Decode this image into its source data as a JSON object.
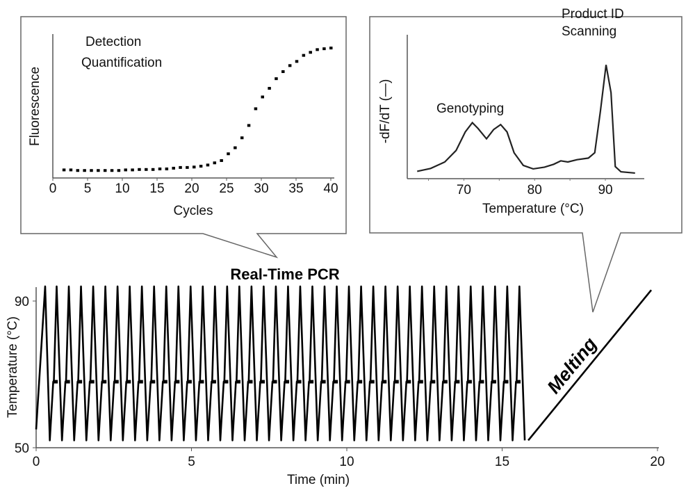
{
  "chart_data": [
    {
      "type": "line",
      "title": "Real-Time PCR",
      "xlabel": "Time (min)",
      "ylabel": "Temperature (°C)",
      "xlim": [
        0,
        20
      ],
      "ylim": [
        50,
        90
      ],
      "xticks": [
        "0",
        "5",
        "10",
        "15",
        "20"
      ],
      "yticks": [
        "50",
        "90"
      ],
      "cycling": {
        "cycles": 40,
        "start_temperature_C": 55,
        "denaturation_C": 94,
        "annealing_C": 52,
        "extension_C": 68,
        "cycle_duration_min": 0.392,
        "first_peak_min": 0.29,
        "first_min_min": 0.44
      },
      "melting": {
        "label": "Melting",
        "start": [
          15.84,
          52
        ],
        "end": [
          19.8,
          93
        ]
      }
    },
    {
      "type": "scatter",
      "xlabel": "Cycles",
      "ylabel": "Fluorescence",
      "xlim": [
        0,
        40
      ],
      "ylim": [
        0,
        100
      ],
      "xticks": [
        "0",
        "5",
        "10",
        "15",
        "20",
        "25",
        "30",
        "35",
        "40"
      ],
      "annotations": [
        "Detection",
        "Quantification"
      ],
      "x": [
        1,
        2,
        3,
        4,
        5,
        6,
        7,
        8,
        9,
        10,
        11,
        12,
        13,
        14,
        15,
        16,
        17,
        18,
        19,
        20,
        21,
        22,
        23,
        24,
        25,
        26,
        27,
        28,
        29,
        30,
        31,
        32,
        33,
        34,
        35,
        36,
        37,
        38,
        39,
        40
      ],
      "y": [
        5.6,
        5.6,
        5.2,
        5.2,
        5.2,
        5.2,
        5.2,
        5.2,
        5.2,
        5.6,
        5.6,
        5.9,
        5.9,
        5.9,
        6.3,
        6.3,
        6.8,
        7.3,
        7.3,
        7.6,
        8.2,
        9.0,
        10.5,
        12.1,
        16.8,
        21.0,
        27.9,
        36.5,
        48.1,
        56.3,
        62.3,
        69.0,
        73.9,
        78.1,
        81.0,
        85.2,
        87.3,
        89.2,
        89.8,
        90.3
      ]
    },
    {
      "type": "line",
      "xlabel": "Temperature (°C)",
      "ylabel": "-dF/dT (—)",
      "xlim": [
        62,
        95.5
      ],
      "ylim": [
        0,
        100
      ],
      "xticks": [
        "70",
        "80",
        "90"
      ],
      "annotations": [
        "Genotyping",
        "Product ID",
        "Scanning"
      ],
      "x": [
        63.4,
        65.3,
        67.3,
        68.9,
        70.2,
        71.2,
        72.0,
        73.2,
        74.2,
        75.2,
        76.1,
        77.1,
        78.4,
        79.8,
        81.4,
        82.7,
        83.7,
        84.7,
        86.0,
        87.6,
        88.5,
        89.3,
        90.1,
        90.8,
        91.4,
        92.2,
        94.2
      ],
      "y": [
        5.1,
        7.1,
        11.6,
        19.6,
        32.5,
        38.9,
        34.9,
        27.7,
        34.1,
        37.6,
        32.5,
        18.0,
        9.2,
        6.8,
        8.0,
        10.0,
        12.4,
        11.6,
        13.2,
        14.3,
        18.0,
        46.9,
        79.1,
        59.8,
        8.4,
        4.8,
        3.9
      ]
    }
  ]
}
